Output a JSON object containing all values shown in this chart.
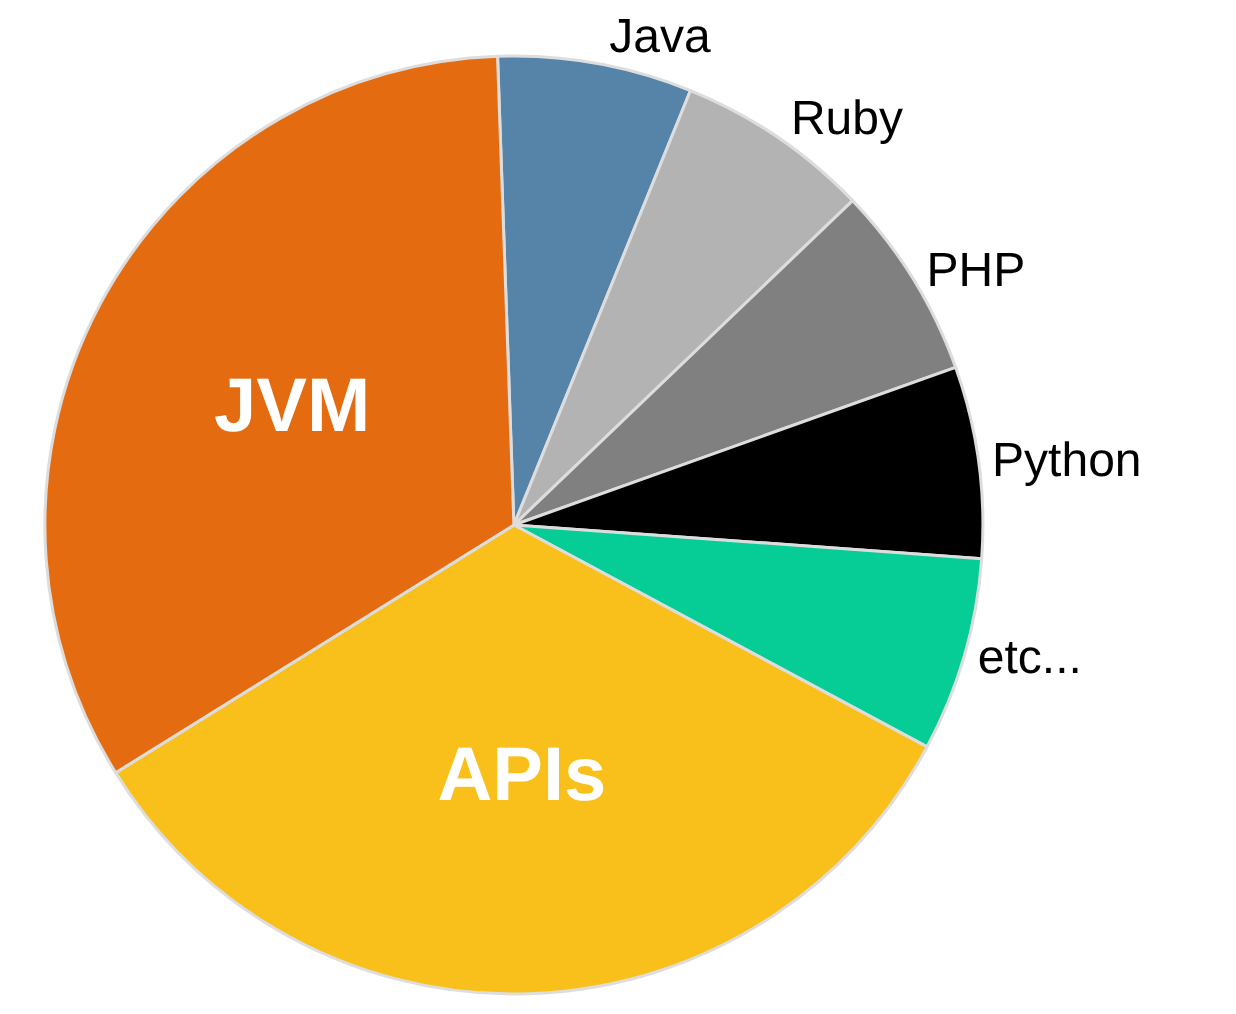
{
  "chart_data": {
    "type": "pie",
    "categories": [
      "Java",
      "Ruby",
      "PHP",
      "Python",
      "etc...",
      "APIs",
      "JVM"
    ],
    "values": [
      6.7,
      6.7,
      6.7,
      6.6,
      6.7,
      33.3,
      33.3
    ],
    "colors": [
      "#5584a8",
      "#b3b3b3",
      "#808080",
      "#000000",
      "#06cc96",
      "#f9c01c",
      "#e56b10"
    ],
    "legend": false
  }
}
